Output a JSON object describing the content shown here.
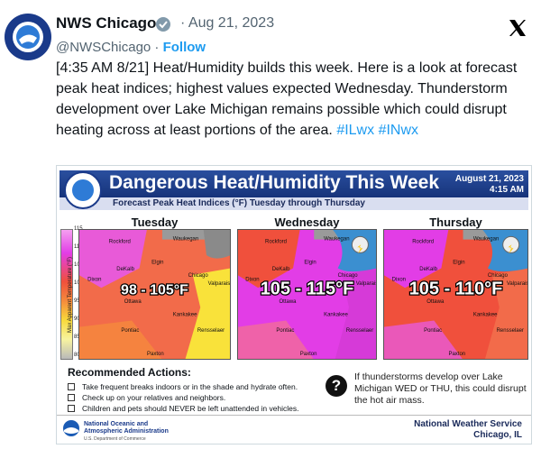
{
  "tweet": {
    "author": "NWS Chicago",
    "date": "· Aug 21, 2023",
    "handle": "@NWSChicago ·",
    "follow": "Follow",
    "text": "[4:35 AM 8/21] Heat/Humidity builds this week. Here is a look at forecast peak heat indices; highest values expected Wednesday. Thunderstorm development over Lake Michigan remains possible which could disrupt heating across at least portions of the area.",
    "hashtags": [
      "#ILwx",
      "#INwx"
    ]
  },
  "graphic": {
    "title": "Dangerous Heat/Humidity This Week",
    "subtitle": "Forecast Peak Heat Indices (°F) Tuesday through Thursday",
    "date": "August 21, 2023",
    "time": "4:15 AM",
    "legend": {
      "title": "Max Apparent Temperature (°F)",
      "ticks": [
        115,
        110,
        105,
        100,
        95,
        90,
        85,
        80
      ]
    },
    "maps": [
      {
        "day": "Tuesday",
        "range": "98 - 105°F"
      },
      {
        "day": "Wednesday",
        "range": "105 - 115°F"
      },
      {
        "day": "Thursday",
        "range": "105 - 110°F"
      }
    ],
    "cities": [
      "Rockford",
      "Waukegan",
      "Elgin",
      "DeKalb",
      "Chicago",
      "Dixon",
      "Ottawa",
      "Kankakee",
      "Valparaiso",
      "Pontiac",
      "Rensselaer",
      "Paxton"
    ],
    "actions": {
      "title": "Recommended Actions:",
      "items": [
        "Take frequent breaks indoors or in the shade and hydrate often.",
        "Check up on your relatives and neighbors.",
        "Children and pets should NEVER be left unattended in vehicles."
      ]
    },
    "note": "If thunderstorms develop over Lake Michigan WED or THU, this could disrupt the hot air mass.",
    "footer": {
      "agency": "National Oceanic and Atmospheric Administration",
      "department": "U.S. Department of Commerce",
      "office": "National Weather Service",
      "location": "Chicago, IL"
    }
  }
}
